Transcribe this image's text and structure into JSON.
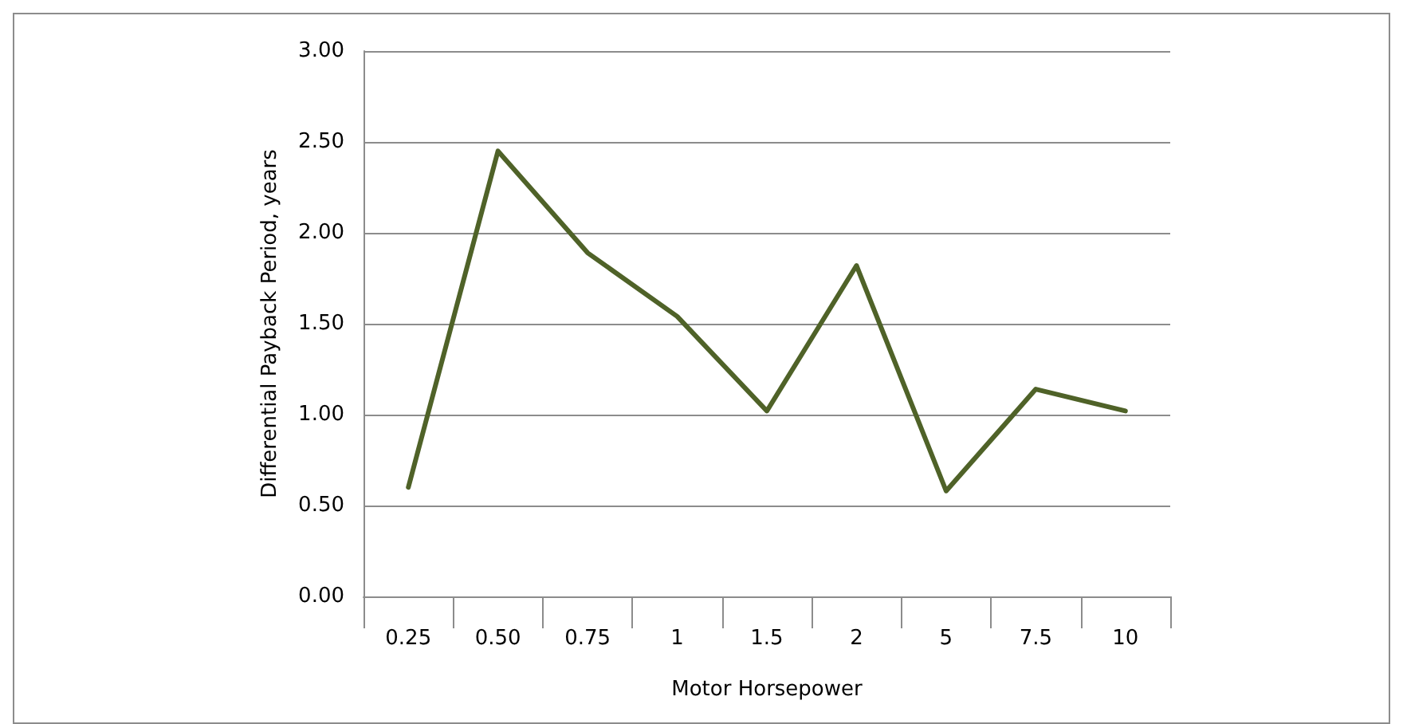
{
  "chart_data": {
    "type": "line",
    "xlabel": "Motor Horsepower",
    "ylabel": "Differential Payback Period, years",
    "categories": [
      "0.25",
      "0.50",
      "0.75",
      "1",
      "1.5",
      "2",
      "5",
      "7.5",
      "10"
    ],
    "series": [
      {
        "color": "#4f6228",
        "values": [
          0.6,
          2.45,
          1.89,
          1.54,
          1.02,
          1.82,
          0.58,
          1.14,
          1.02
        ]
      }
    ],
    "ylim": [
      0,
      3
    ],
    "yticks": [
      {
        "value": 0,
        "label": "0.00"
      },
      {
        "value": 0.5,
        "label": "0.50"
      },
      {
        "value": 1,
        "label": "1.00"
      },
      {
        "value": 1.5,
        "label": "1.50"
      },
      {
        "value": 2,
        "label": "2.00"
      },
      {
        "value": 2.5,
        "label": "2.50"
      },
      {
        "value": 3,
        "label": "3.00"
      }
    ],
    "grid": "y",
    "marker": "none",
    "line_style": "solid"
  }
}
